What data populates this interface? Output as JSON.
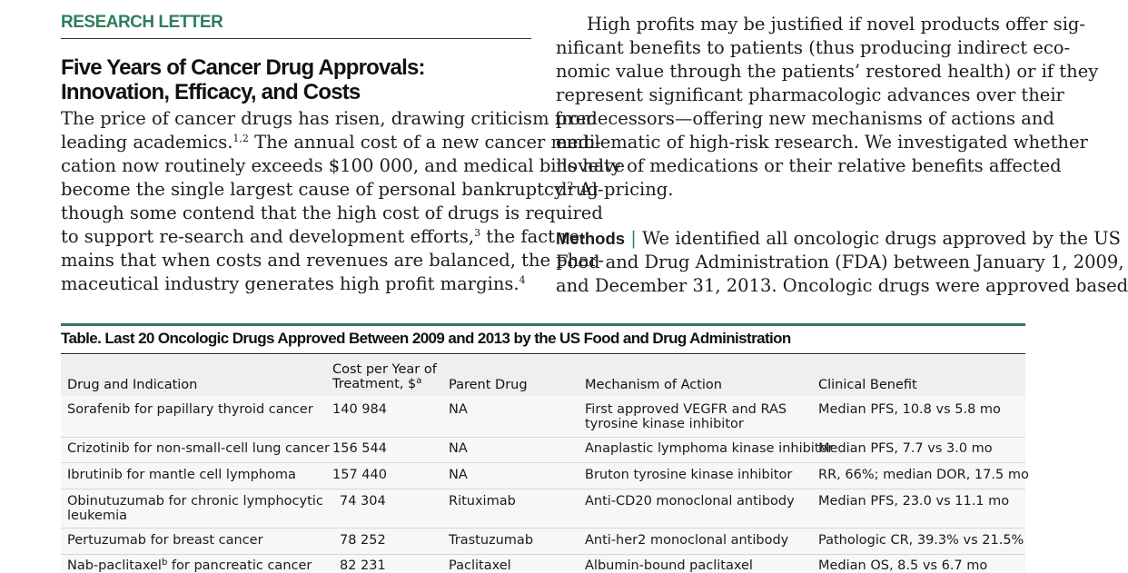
{
  "section_label": "RESEARCH LETTER",
  "title_lines": [
    "Five Years of Cancer Drug Approvals:",
    "Innovation, Efficacy, and Costs"
  ],
  "left_lines": [
    "The price of cancer drugs has risen, drawing criticism from",
    "leading academics.",
    "cation now routinely exceeds $100 000, and medical bills have",
    "become the single largest cause of personal bankruptcy.",
    "though some contend that the high cost of drugs is required",
    "to support re-search and development efforts,",
    "mains that when costs and revenues are balanced, the phar-",
    "maceutical industry generates high profit margins."
  ],
  "left_fragments": {
    "l2_sup": "1,2",
    "l2_tail": " The annual cost of a new cancer medi-",
    "l4_sup": "2",
    "l4_tail": " Al-",
    "l6_sup": "3",
    "l6_tail": " the fact re-",
    "l8_sup": "4"
  },
  "right_lines": [
    "High profits may be justified if novel products offer sig-",
    "nificant benefits to patients (thus producing indirect eco-",
    "nomic value through the patients’ restored health) or if they",
    "represent significant pharmacologic advances over their",
    "predecessors—offering new mechanisms of actions and",
    "emblematic of high-risk research. We investigated whether",
    "novelty of medications or their relative benefits affected",
    "drug pricing."
  ],
  "methods": {
    "label": "Methods",
    "separator": "|",
    "lines": [
      " We identified all oncologic drugs approved by the US",
      "Food and Drug Administration (FDA) between January 1, 2009,",
      "and December 31, 2013. Oncologic drugs were approved based"
    ]
  },
  "table": {
    "caption": "Table. Last 20 Oncologic Drugs Approved Between 2009 and 2013 by the US Food and Drug Administration",
    "headers": {
      "drug": "Drug and Indication",
      "cost_line1": "Cost per Year of",
      "cost_line2": "Treatment, $",
      "cost_sup": "a",
      "parent": "Parent Drug",
      "mechanism": "Mechanism of Action",
      "benefit": "Clinical Benefit"
    },
    "rows": [
      {
        "drug": [
          "Sorafenib for papillary thyroid cancer"
        ],
        "cost": "140 984",
        "parent": "NA",
        "mechanism": [
          "First approved VEGFR and RAS",
          "tyrosine kinase inhibitor"
        ],
        "benefit": "Median PFS, 10.8 vs 5.8 mo"
      },
      {
        "drug": [
          "Crizotinib for non-small-cell lung cancer"
        ],
        "cost": "156 544",
        "parent": "NA",
        "mechanism": [
          "Anaplastic lymphoma kinase inhibitor"
        ],
        "benefit": "Median PFS, 7.7 vs 3.0 mo"
      },
      {
        "drug": [
          "Ibrutinib for mantle cell lymphoma"
        ],
        "cost": "157 440",
        "parent": "NA",
        "mechanism": [
          "Bruton tyrosine kinase inhibitor"
        ],
        "benefit": "RR, 66%; median DOR, 17.5 mo"
      },
      {
        "drug": [
          "Obinutuzumab for chronic lymphocytic",
          "leukemia"
        ],
        "cost": "74 304",
        "parent": "Rituximab",
        "mechanism": [
          "Anti-CD20 monoclonal antibody"
        ],
        "benefit": "Median PFS, 23.0 vs 11.1 mo"
      },
      {
        "drug": [
          "Pertuzumab for breast cancer"
        ],
        "cost": "78 252",
        "parent": "Trastuzumab",
        "mechanism": [
          "Anti-her2 monoclonal antibody"
        ],
        "benefit": "Pathologic CR, 39.3% vs 21.5%"
      },
      {
        "drug": [
          "Nab-paclitaxel",
          "b",
          " for pancreatic cancer"
        ],
        "cost": "82 231",
        "parent": "Paclitaxel",
        "mechanism": [
          "Albumin-bound paclitaxel"
        ],
        "benefit": "Median OS, 8.5 vs 6.7 mo"
      }
    ]
  }
}
